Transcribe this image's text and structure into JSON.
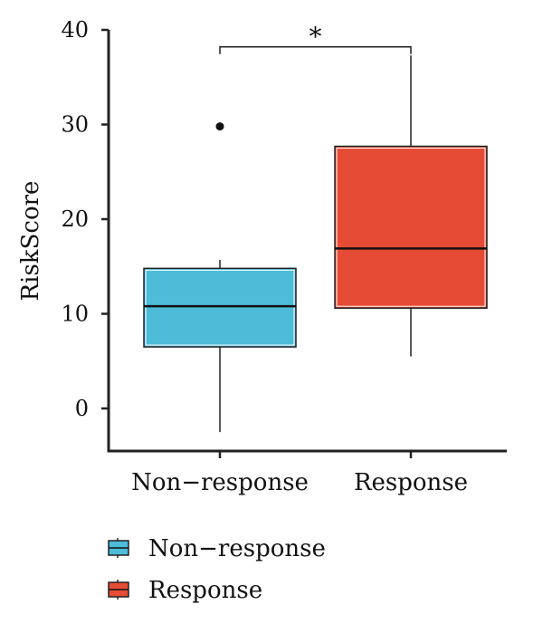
{
  "chart_data": {
    "type": "box",
    "ylabel": "RiskScore",
    "ylim": [
      -4.5,
      40
    ],
    "yticks": [
      0,
      10,
      20,
      30,
      40
    ],
    "categories": [
      "Non−response",
      "Response"
    ],
    "boxes": [
      {
        "name": "Non−response",
        "color": "#4cbcd9",
        "whisker_low": -2.5,
        "q1": 6.5,
        "median": 10.8,
        "q3": 14.8,
        "whisker_high": 15.7,
        "outliers": [
          29.8
        ]
      },
      {
        "name": "Response",
        "color": "#e64c35",
        "whisker_low": 5.5,
        "q1": 10.6,
        "median": 16.9,
        "q3": 27.7,
        "whisker_high": 37.3,
        "outliers": []
      }
    ],
    "significance": {
      "label": "*",
      "between": [
        0,
        1
      ],
      "y": 38.2
    },
    "legend": {
      "position": "bottom-left",
      "entries": [
        "Non−response",
        "Response"
      ]
    }
  }
}
